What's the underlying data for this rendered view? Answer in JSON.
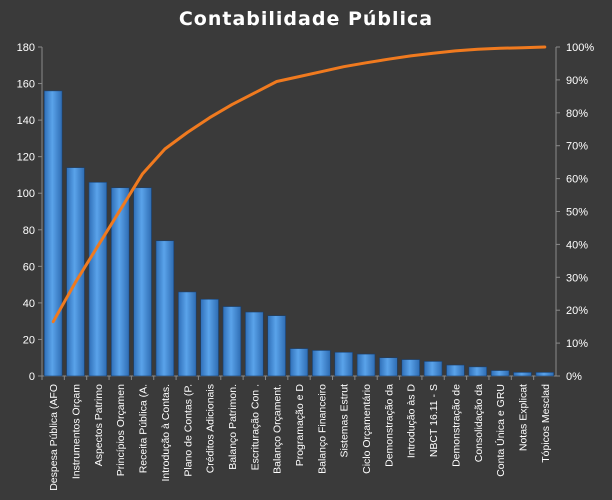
{
  "chart_data": {
    "type": "bar",
    "title": "Contabilidade  Pública",
    "categories": [
      "Despesa Pública (AFO",
      "Instrumentos Orçam",
      "Aspectos Patrimo",
      "Princípios Orçamen",
      "Receita Pública (A.",
      "Introdução à Contas.",
      "Plano de Contas (P.",
      "Créditos Adicionais",
      "Balanço Patrimon.",
      "Escrituração Con .",
      "Balanço Orçament.",
      "Programação e D",
      "Balanço Financeiro",
      "Sistemas Estrut",
      "Ciclo Orçamentário",
      "Demonstração da",
      "Introdução às D",
      "NBCT 16.11 - S",
      "Demonstração de",
      "Consolidação da",
      "Conta Única e GRU",
      "Notas Explicat",
      "Tópicos Mesclad"
    ],
    "series": [
      {
        "type": "bar",
        "color": "#4a90d9",
        "values": [
          156,
          114,
          106,
          103,
          103,
          74,
          46,
          42,
          38,
          35,
          33,
          15,
          14,
          13,
          12,
          10,
          9,
          8,
          6,
          5,
          3,
          2,
          2
        ]
      },
      {
        "type": "line",
        "color": "#f07a1f",
        "axis": "right",
        "values": [
          16.5,
          28.5,
          39.5,
          50.5,
          61.5,
          69,
          74,
          78.5,
          82.5,
          86,
          89.5,
          91,
          92.5,
          94,
          95.2,
          96.3,
          97.3,
          98.1,
          98.8,
          99.3,
          99.6,
          99.8,
          100
        ]
      }
    ],
    "y_left": {
      "ylim": [
        0,
        180
      ],
      "ticks": [
        "0",
        "20",
        "40",
        "60",
        "80",
        "100",
        "120",
        "140",
        "160",
        "180"
      ]
    },
    "y_right": {
      "ylim": [
        0,
        100
      ],
      "ticks": [
        "0%",
        "10%",
        "20%",
        "30%",
        "40%",
        "50%",
        "60%",
        "70%",
        "80%",
        "90%",
        "100%"
      ]
    },
    "grid": false,
    "legend": "none"
  }
}
